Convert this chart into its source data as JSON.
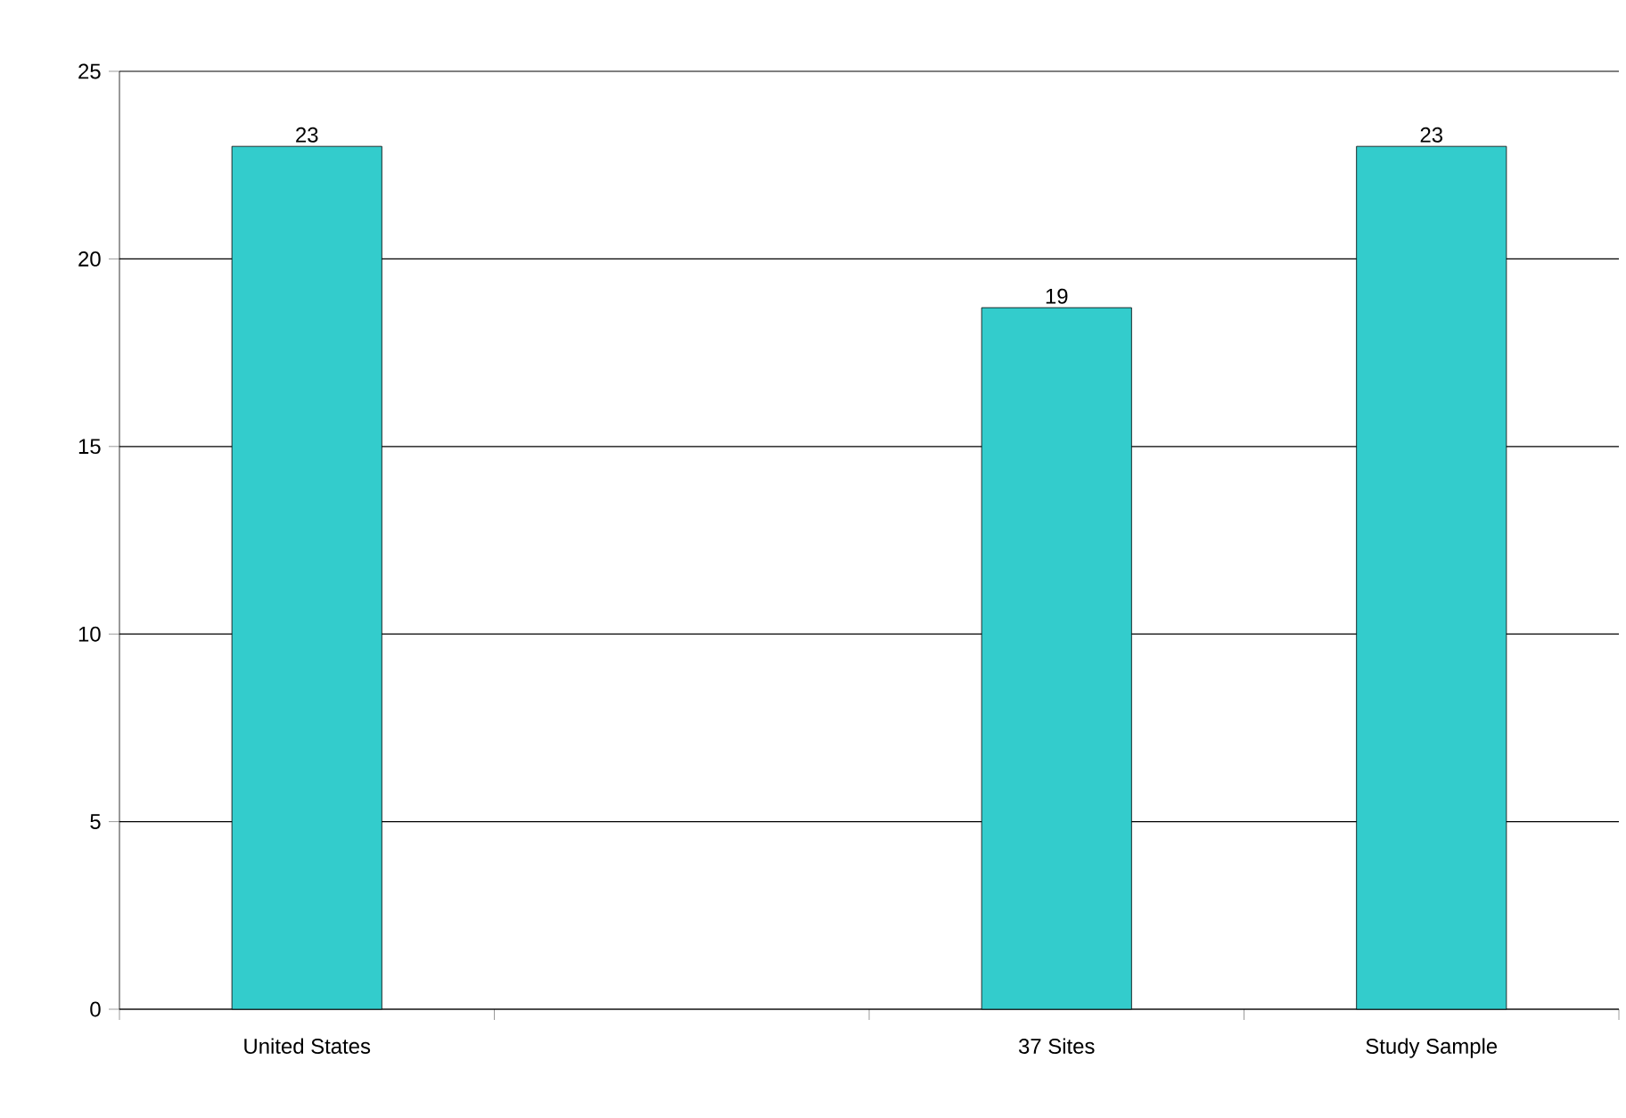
{
  "chart_data": {
    "type": "bar",
    "categories": [
      "United States",
      null,
      "37 Sites",
      "Study Sample"
    ],
    "values": [
      23,
      null,
      18.7,
      23
    ],
    "value_labels": [
      "23",
      null,
      "19",
      "23"
    ],
    "color": "#33cccc",
    "ylim": [
      0,
      25
    ],
    "yticks": [
      0,
      5,
      10,
      15,
      20,
      25
    ],
    "grid": "y"
  }
}
